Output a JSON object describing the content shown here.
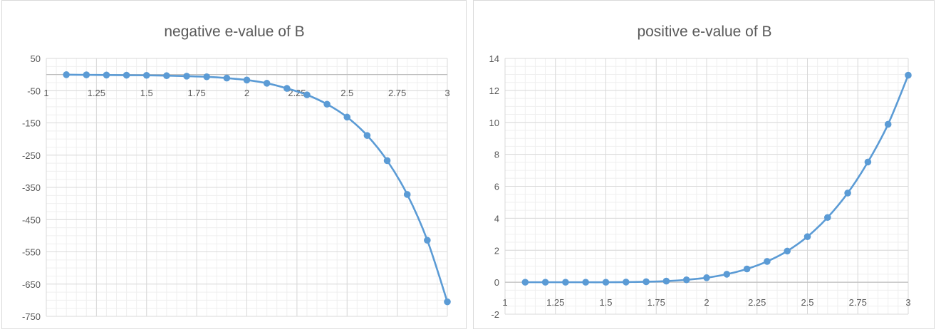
{
  "chart_data": [
    {
      "type": "line",
      "title": "negative e-value of B",
      "xlabel": "",
      "ylabel": "",
      "xlim": [
        1,
        3
      ],
      "ylim": [
        -750,
        50
      ],
      "x_ticks": [
        "1",
        "1.25",
        "1.5",
        "1.75",
        "2",
        "2.25",
        "2.5",
        "2.75",
        "3"
      ],
      "y_ticks": [
        "50",
        "-50",
        "-150",
        "-250",
        "-350",
        "-450",
        "-550",
        "-650",
        "-750"
      ],
      "grid": true,
      "color": "#5b9bd5",
      "x": [
        1.1,
        1.2,
        1.3,
        1.4,
        1.5,
        1.6,
        1.7,
        1.8,
        1.9,
        2.0,
        2.1,
        2.2,
        2.3,
        2.4,
        2.5,
        2.6,
        2.7,
        2.8,
        2.9,
        3.0
      ],
      "values": [
        -0.5,
        -1,
        -1.5,
        -2,
        -2.5,
        -3.5,
        -5,
        -7,
        -11,
        -17,
        -27,
        -43,
        -63,
        -92,
        -132,
        -189,
        -267,
        -372,
        -514,
        -705
      ]
    },
    {
      "type": "line",
      "title": "positive e-value of B",
      "xlabel": "",
      "ylabel": "",
      "xlim": [
        1,
        3
      ],
      "ylim": [
        -2,
        14
      ],
      "x_ticks": [
        "1",
        "1.25",
        "1.5",
        "1.75",
        "2",
        "2.25",
        "2.5",
        "2.75",
        "3"
      ],
      "y_ticks": [
        "14",
        "12",
        "10",
        "8",
        "6",
        "4",
        "2",
        "0",
        "-2"
      ],
      "grid": true,
      "color": "#5b9bd5",
      "x": [
        1.1,
        1.2,
        1.3,
        1.4,
        1.5,
        1.6,
        1.7,
        1.8,
        1.9,
        2.0,
        2.1,
        2.2,
        2.3,
        2.4,
        2.5,
        2.6,
        2.7,
        2.8,
        2.9,
        3.0
      ],
      "values": [
        0,
        0,
        0,
        0,
        0,
        0.01,
        0.03,
        0.07,
        0.15,
        0.28,
        0.5,
        0.83,
        1.3,
        1.95,
        2.85,
        4.05,
        5.58,
        7.52,
        9.88,
        12.95
      ]
    }
  ]
}
